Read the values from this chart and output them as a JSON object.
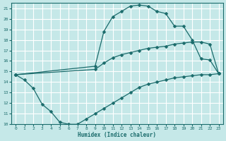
{
  "xlabel": "Humidex (Indice chaleur)",
  "xlim": [
    -0.5,
    23.5
  ],
  "ylim": [
    10,
    21.5
  ],
  "xticks": [
    0,
    1,
    2,
    3,
    4,
    5,
    6,
    7,
    8,
    9,
    10,
    11,
    12,
    13,
    14,
    15,
    16,
    17,
    18,
    19,
    20,
    21,
    22,
    23
  ],
  "yticks": [
    10,
    11,
    12,
    13,
    14,
    15,
    16,
    17,
    18,
    19,
    20,
    21
  ],
  "bg_color": "#c5e8e8",
  "grid_color": "#ffffff",
  "line_color": "#1a6b6b",
  "line1_x": [
    0,
    1,
    2,
    3,
    4,
    5,
    6,
    7,
    8,
    9,
    10,
    11,
    12,
    13,
    14,
    15,
    16,
    17,
    18,
    19,
    20,
    21,
    22,
    23
  ],
  "line1_y": [
    14.7,
    14.2,
    13.4,
    11.9,
    11.2,
    10.2,
    10.0,
    10.0,
    10.5,
    11.0,
    11.5,
    12.0,
    12.5,
    13.0,
    13.5,
    13.8,
    14.0,
    14.2,
    14.4,
    14.5,
    14.6,
    14.7,
    14.7,
    14.8
  ],
  "line2_x": [
    0,
    9,
    10,
    11,
    12,
    13,
    14,
    15,
    16,
    17,
    18,
    19,
    20,
    21,
    22,
    23
  ],
  "line2_y": [
    14.7,
    15.5,
    18.8,
    20.2,
    20.7,
    21.2,
    21.3,
    21.2,
    20.7,
    20.5,
    19.3,
    19.3,
    18.0,
    16.2,
    16.1,
    14.8
  ],
  "line3_x": [
    0,
    9,
    10,
    11,
    12,
    13,
    14,
    15,
    16,
    17,
    18,
    19,
    20,
    21,
    22,
    23
  ],
  "line3_y": [
    14.7,
    15.2,
    15.8,
    16.3,
    16.6,
    16.8,
    17.0,
    17.2,
    17.3,
    17.4,
    17.6,
    17.7,
    17.8,
    17.8,
    17.6,
    14.8
  ]
}
